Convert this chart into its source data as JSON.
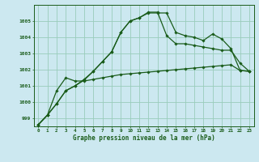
{
  "title": "Graphe pression niveau de la mer (hPa)",
  "background_color": "#cce8f0",
  "grid_color": "#99ccbb",
  "line_color": "#1a5c1a",
  "x_min": -0.5,
  "x_max": 23.5,
  "y_min": 998.5,
  "y_max": 1006.0,
  "yticks": [
    999,
    1000,
    1001,
    1002,
    1003,
    1004,
    1005
  ],
  "xticks": [
    0,
    1,
    2,
    3,
    4,
    5,
    6,
    7,
    8,
    9,
    10,
    11,
    12,
    13,
    14,
    15,
    16,
    17,
    18,
    19,
    20,
    21,
    22,
    23
  ],
  "line1": [
    998.6,
    999.2,
    999.9,
    1000.7,
    1001.0,
    1001.4,
    1001.9,
    1002.5,
    1003.1,
    1004.3,
    1005.0,
    1005.2,
    1005.5,
    1005.5,
    1005.5,
    1004.3,
    1004.1,
    1004.0,
    1003.8,
    1004.2,
    1003.9,
    1003.3,
    1001.95,
    1001.9
  ],
  "line2": [
    998.6,
    999.2,
    999.9,
    1000.7,
    1001.0,
    1001.35,
    1001.9,
    1002.5,
    1003.1,
    1004.3,
    1005.0,
    1005.2,
    1005.55,
    1005.55,
    1004.1,
    1003.6,
    1003.6,
    1003.5,
    1003.4,
    1003.3,
    1003.2,
    1003.2,
    1002.4,
    1001.9
  ],
  "line3": [
    998.6,
    999.2,
    1000.7,
    1001.5,
    1001.3,
    1001.3,
    1001.4,
    1001.5,
    1001.6,
    1001.7,
    1001.75,
    1001.8,
    1001.85,
    1001.9,
    1001.95,
    1002.0,
    1002.05,
    1002.1,
    1002.15,
    1002.2,
    1002.25,
    1002.3,
    1001.95,
    1001.9
  ]
}
